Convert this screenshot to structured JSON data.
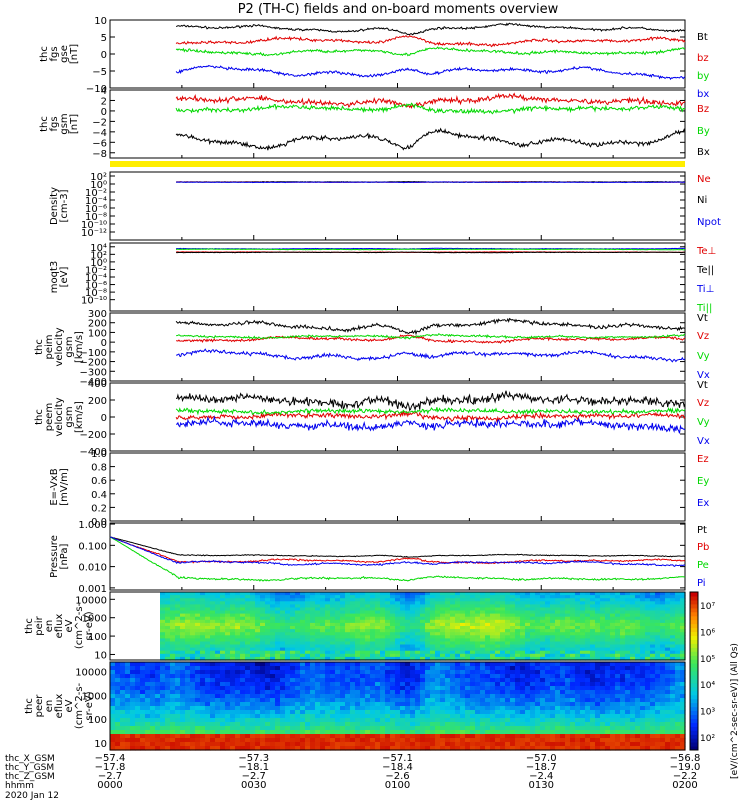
{
  "title": "P2 (TH-C) fields and on-board moments overview",
  "colors": {
    "black": "#000000",
    "red": "#e00000",
    "green": "#00d800",
    "blue": "#0000ee",
    "yellow": "#ffee00"
  },
  "chart_data": [
    {
      "id": "fgs",
      "type": "line",
      "ylabel": [
        "thc",
        "fgs",
        "gse",
        "[nT]"
      ],
      "ylim": [
        -10,
        10
      ],
      "ticks": [
        {
          "v": 10,
          "l": "10"
        },
        {
          "v": 5,
          "l": "5"
        },
        {
          "v": 0,
          "l": "0"
        },
        {
          "v": -5,
          "l": "−5"
        },
        {
          "v": -10,
          "l": "−10"
        }
      ],
      "series": [
        {
          "name": "Bt",
          "color": "black",
          "base": 7.6,
          "amp": 1.0,
          "noise": 0.3
        },
        {
          "name": "bz",
          "color": "red",
          "base": 3.6,
          "amp": 1.0,
          "noise": 0.4
        },
        {
          "name": "by",
          "color": "green",
          "base": 0.8,
          "amp": 0.9,
          "noise": 0.4
        },
        {
          "name": "bx",
          "color": "blue",
          "base": -5.4,
          "amp": 1.6,
          "noise": 0.4
        }
      ]
    },
    {
      "id": "fgs_gsm",
      "type": "line",
      "ylabel": [
        "thc",
        "fgs",
        "gsm",
        "[nT]"
      ],
      "ylim": [
        -9,
        4
      ],
      "ticks": [
        {
          "v": 4,
          "l": "4"
        },
        {
          "v": 2,
          "l": "2"
        },
        {
          "v": 0,
          "l": "0"
        },
        {
          "v": -2,
          "l": "−2"
        },
        {
          "v": -4,
          "l": "−4"
        },
        {
          "v": -6,
          "l": "−6"
        },
        {
          "v": -8,
          "l": "−8"
        }
      ],
      "series": [
        {
          "name": "Bz",
          "color": "red",
          "base": 2.0,
          "amp": 0.7,
          "noise": 0.5
        },
        {
          "name": "By",
          "color": "green",
          "base": 0.3,
          "amp": 0.5,
          "noise": 0.4
        },
        {
          "name": "Bx",
          "color": "black",
          "base": -5.3,
          "amp": 1.6,
          "noise": 0.4
        }
      ]
    },
    {
      "id": "density",
      "type": "line",
      "log": true,
      "ylabel": [
        "Density",
        "[cm-3]"
      ],
      "ylim": [
        -14,
        3
      ],
      "ticks": [
        {
          "v": 2,
          "l": "10²"
        },
        {
          "v": 0,
          "l": "10⁰"
        },
        {
          "v": -2,
          "l": "10⁻²"
        },
        {
          "v": -4,
          "l": "10⁻⁴"
        },
        {
          "v": -6,
          "l": "10⁻⁶"
        },
        {
          "v": -8,
          "l": "10⁻⁸"
        },
        {
          "v": -10,
          "l": "10⁻¹⁰"
        },
        {
          "v": -12,
          "l": "10⁻¹²"
        }
      ],
      "series": [
        {
          "name": "Ne",
          "color": "red",
          "base": 0.5,
          "amp": 0.05,
          "noise": 0.05
        },
        {
          "name": "Ni",
          "color": "black",
          "base": 0.5,
          "amp": 0.05,
          "noise": 0.05
        },
        {
          "name": "Npot",
          "color": "blue",
          "base": 0.45,
          "amp": 0.05,
          "noise": 0.05
        }
      ]
    },
    {
      "id": "temp",
      "type": "line",
      "log": true,
      "ylabel": [
        "moqt3",
        "[eV]"
      ],
      "ylim": [
        -13,
        5
      ],
      "ticks": [
        {
          "v": 4,
          "l": "10⁴"
        },
        {
          "v": 2,
          "l": "10²"
        },
        {
          "v": 0,
          "l": "10⁰"
        },
        {
          "v": -2,
          "l": "10⁻²"
        },
        {
          "v": -4,
          "l": "10⁻⁴"
        },
        {
          "v": -6,
          "l": "10⁻⁶"
        },
        {
          "v": -8,
          "l": "10⁻⁸"
        },
        {
          "v": -10,
          "l": "10⁻¹⁰"
        }
      ],
      "series": [
        {
          "name": "Te⊥",
          "color": "red",
          "base": 2.6,
          "amp": 0.05,
          "noise": 0.05
        },
        {
          "name": "Te||",
          "color": "black",
          "base": 2.5,
          "amp": 0.05,
          "noise": 0.05
        },
        {
          "name": "Ti⊥",
          "color": "blue",
          "base": 3.5,
          "amp": 0.08,
          "noise": 0.05
        },
        {
          "name": "Ti||",
          "color": "green",
          "base": 3.3,
          "amp": 0.08,
          "noise": 0.05
        }
      ]
    },
    {
      "id": "peim",
      "type": "line",
      "ylabel": [
        "thc",
        "peim",
        "velocity",
        "gsm",
        "[km/s]"
      ],
      "ylim": [
        -400,
        300
      ],
      "ticks": [
        {
          "v": 300,
          "l": "300"
        },
        {
          "v": 200,
          "l": "200"
        },
        {
          "v": 100,
          "l": "100"
        },
        {
          "v": 0,
          "l": "0"
        },
        {
          "v": -100,
          "l": "−100"
        },
        {
          "v": -200,
          "l": "−200"
        },
        {
          "v": -300,
          "l": "−300"
        },
        {
          "v": -400,
          "l": "−400"
        }
      ],
      "series": [
        {
          "name": "Vt",
          "color": "black",
          "base": 175,
          "amp": 45,
          "noise": 18
        },
        {
          "name": "Vz",
          "color": "red",
          "base": 25,
          "amp": 25,
          "noise": 12
        },
        {
          "name": "Vy",
          "color": "green",
          "base": 60,
          "amp": 15,
          "noise": 10
        },
        {
          "name": "Vx",
          "color": "blue",
          "base": -140,
          "amp": 45,
          "noise": 18
        }
      ]
    },
    {
      "id": "peem",
      "type": "line",
      "ylabel": [
        "thc",
        "peem",
        "velocity",
        "gsm",
        "[km/s]"
      ],
      "ylim": [
        -400,
        400
      ],
      "ticks": [
        {
          "v": 400,
          "l": "400"
        },
        {
          "v": 200,
          "l": "200"
        },
        {
          "v": 0,
          "l": "0"
        },
        {
          "v": -200,
          "l": "−200"
        },
        {
          "v": -400,
          "l": "−400"
        }
      ],
      "series": [
        {
          "name": "Vt",
          "color": "black",
          "base": 200,
          "amp": 45,
          "noise": 45
        },
        {
          "name": "Vz",
          "color": "red",
          "base": 5,
          "amp": 25,
          "noise": 30
        },
        {
          "name": "Vy",
          "color": "green",
          "base": 70,
          "amp": 15,
          "noise": 25
        },
        {
          "name": "Vx",
          "color": "blue",
          "base": -95,
          "amp": 45,
          "noise": 45
        }
      ]
    },
    {
      "id": "efield",
      "type": "line",
      "ylabel": [
        "E=-VxB",
        "[mV/m]"
      ],
      "ylim": [
        0,
        1
      ],
      "ticks": [
        {
          "v": 1,
          "l": "1.0"
        },
        {
          "v": 0.8,
          "l": "0.8"
        },
        {
          "v": 0.6,
          "l": "0.6"
        },
        {
          "v": 0.4,
          "l": "0.4"
        },
        {
          "v": 0.2,
          "l": "0.2"
        },
        {
          "v": 0,
          "l": "0.0"
        }
      ],
      "series": [
        {
          "name": "Ez",
          "color": "red"
        },
        {
          "name": "Ey",
          "color": "green"
        },
        {
          "name": "Ex",
          "color": "blue"
        }
      ]
    },
    {
      "id": "pressure",
      "type": "line",
      "log": true,
      "ylabel": [
        "Pressure",
        "[nPa]"
      ],
      "ylim": [
        -3.1,
        0.05
      ],
      "ticks": [
        {
          "v": 0,
          "l": "1.000"
        },
        {
          "v": -1,
          "l": "0.100"
        },
        {
          "v": -2,
          "l": "0.010"
        },
        {
          "v": -3,
          "l": "0.001"
        }
      ],
      "series": [
        {
          "name": "Pt",
          "color": "black",
          "base": -1.48,
          "amp": 0.04,
          "noise": 0.02
        },
        {
          "name": "Pb",
          "color": "red",
          "base": -1.75,
          "amp": 0.08,
          "noise": 0.04
        },
        {
          "name": "Pe",
          "color": "green",
          "base": -2.55,
          "amp": 0.08,
          "noise": 0.04
        },
        {
          "name": "Pi",
          "color": "blue",
          "base": -1.85,
          "amp": 0.1,
          "noise": 0.04
        }
      ]
    },
    {
      "id": "peir",
      "type": "heatmap",
      "ylabel": [
        "thc",
        "peir",
        "en",
        "eflux",
        "eV",
        "(cm^2-s-",
        "sr-eV)"
      ],
      "ticks": [
        {
          "v": 10000,
          "l": "10000"
        },
        {
          "v": 1000,
          "l": "1000"
        },
        {
          "v": 100,
          "l": "100"
        },
        {
          "v": 10,
          "l": "10"
        }
      ],
      "ylim": [
        5,
        25000
      ]
    },
    {
      "id": "peer",
      "type": "heatmap",
      "ylabel": [
        "thc",
        "peer",
        "en",
        "eflux",
        "eV",
        "(cm^2-s-",
        "sr-eV)"
      ],
      "ticks": [
        {
          "v": 10000,
          "l": "10000"
        },
        {
          "v": 1000,
          "l": "1000"
        },
        {
          "v": 100,
          "l": "100"
        },
        {
          "v": 10,
          "l": "10"
        }
      ],
      "ylim": [
        5,
        25000
      ]
    }
  ],
  "colorbar": {
    "ticks": [
      {
        "v": 7,
        "l": "10⁷"
      },
      {
        "v": 6,
        "l": "10⁶"
      },
      {
        "v": 5,
        "l": "10⁵"
      },
      {
        "v": 4,
        "l": "10⁴"
      },
      {
        "v": 3,
        "l": "10³"
      },
      {
        "v": 2,
        "l": "10²"
      }
    ],
    "range": [
      1.5,
      7.5
    ],
    "label": "[eV/(cm^2-sec-sr-eV)] (All Qs)"
  },
  "xaxis": {
    "row_labels": [
      "thc_X_GSM",
      "thc_Y_GSM",
      "thc_Z_GSM",
      "hhmm"
    ],
    "columns": [
      {
        "frac": 0.0,
        "vals": [
          "−57.4",
          "−17.8",
          "−2.7",
          "0000"
        ]
      },
      {
        "frac": 0.25,
        "vals": [
          "−57.3",
          "−18.1",
          "−2.7",
          "0030"
        ]
      },
      {
        "frac": 0.5,
        "vals": [
          "−57.1",
          "−18.4",
          "−2.6",
          "0100"
        ]
      },
      {
        "frac": 0.75,
        "vals": [
          "−57.0",
          "−18.7",
          "−2.4",
          "0130"
        ]
      },
      {
        "frac": 1.0,
        "vals": [
          "−56.8",
          "−19.0",
          "−2.2",
          "0200"
        ]
      }
    ],
    "date": "2020 Jan 12"
  }
}
